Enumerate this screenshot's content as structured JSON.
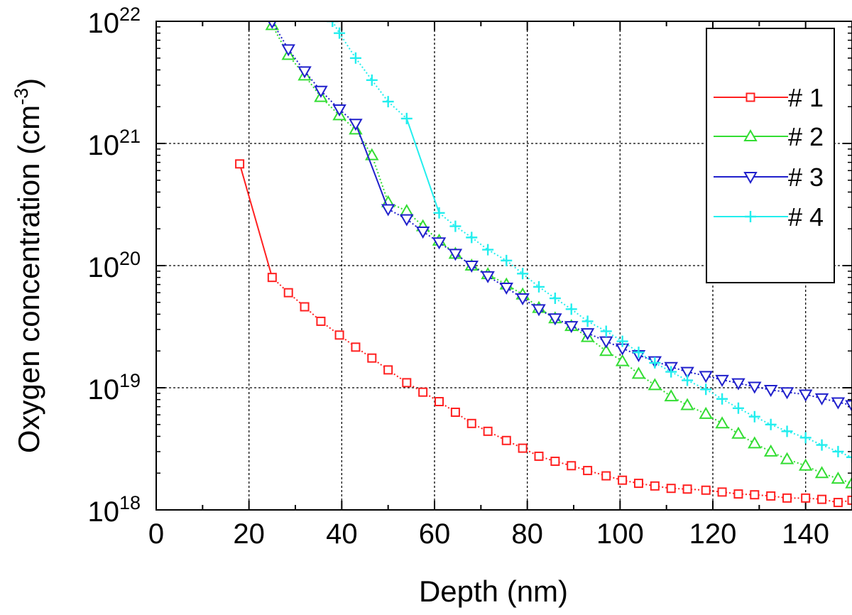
{
  "chart_data": {
    "type": "scatter",
    "title": "",
    "xlabel": "Depth (nm)",
    "ylabel": {
      "main": "Oxygen concentration (cm",
      "sup": "-3",
      "close": ")"
    },
    "xlim": [
      0,
      150
    ],
    "ylim": [
      1e+18,
      1e+22
    ],
    "yscale": "log",
    "grid": true,
    "legend_position": "top-right",
    "x_ticks": [
      "0",
      "20",
      "40",
      "60",
      "80",
      "100",
      "120",
      "140"
    ],
    "y_ticks": [
      {
        "base": "10",
        "exp": "18"
      },
      {
        "base": "10",
        "exp": "19"
      },
      {
        "base": "10",
        "exp": "20"
      },
      {
        "base": "10",
        "exp": "21"
      },
      {
        "base": "10",
        "exp": "22"
      }
    ],
    "series": [
      {
        "name": "# 1",
        "color": "#ff2020",
        "marker": "square",
        "x": [
          18,
          25,
          28.5,
          32,
          35.5,
          39.5,
          43,
          46.5,
          50,
          54,
          57.5,
          61,
          64.5,
          68,
          71.5,
          75.5,
          79,
          82.5,
          86,
          89.5,
          93,
          97,
          100.5,
          104,
          107.5,
          111,
          114.5,
          118.5,
          122,
          125.5,
          129,
          132.5,
          136,
          140,
          143.5,
          147,
          150
        ],
        "y": [
          6.8e+20,
          8e+19,
          6e+19,
          4.6e+19,
          3.5e+19,
          2.7e+19,
          2.15e+19,
          1.75e+19,
          1.4e+19,
          1.1e+19,
          9.2e+18,
          7.7e+18,
          6.3e+18,
          5.1e+18,
          4.4e+18,
          3.7e+18,
          3.2e+18,
          2.75e+18,
          2.5e+18,
          2.3e+18,
          2.1e+18,
          1.9e+18,
          1.75e+18,
          1.65e+18,
          1.57e+18,
          1.5e+18,
          1.48e+18,
          1.45e+18,
          1.4e+18,
          1.35e+18,
          1.33e+18,
          1.3e+18,
          1.25e+18,
          1.25e+18,
          1.22e+18,
          1.15e+18,
          1.2e+18
        ]
      },
      {
        "name": "# 2",
        "color": "#33dd33",
        "marker": "triangle-up",
        "x": [
          25,
          28.5,
          32,
          35.5,
          39.5,
          43,
          46.5,
          50,
          54,
          57.5,
          61,
          64.5,
          68,
          71.5,
          75.5,
          79,
          82.5,
          86,
          89.5,
          93,
          97,
          100.5,
          104,
          107.5,
          111,
          114.5,
          118.5,
          122,
          125.5,
          129,
          132.5,
          136,
          140,
          143.5,
          147,
          150
        ],
        "y": [
          9.3e+21,
          5.3e+21,
          3.6e+21,
          2.4e+21,
          1.7e+21,
          1.3e+21,
          8e+20,
          3.3e+20,
          2.8e+20,
          2.1e+20,
          1.6e+20,
          1.25e+20,
          1e+20,
          8.5e+19,
          7e+19,
          5.8e+19,
          4.5e+19,
          3.7e+19,
          3.2e+19,
          2.6e+19,
          2e+19,
          1.65e+19,
          1.3e+19,
          1.05e+19,
          8.5e+18,
          7.2e+18,
          6.1e+18,
          5.1e+18,
          4.2e+18,
          3.5e+18,
          3e+18,
          2.6e+18,
          2.3e+18,
          2e+18,
          1.8e+18,
          1.65e+18
        ]
      },
      {
        "name": "# 3",
        "color": "#2020cc",
        "marker": "triangle-down",
        "x": [
          25,
          28.5,
          32,
          35.5,
          39.5,
          43,
          50,
          54,
          57.5,
          61,
          64.5,
          68,
          71.5,
          75.5,
          79,
          82.5,
          86,
          89.5,
          93,
          97,
          100.5,
          104,
          107.5,
          111,
          114.5,
          118.5,
          122,
          125.5,
          129,
          132.5,
          136,
          140,
          143.5,
          147,
          150
        ],
        "y": [
          9.9e+21,
          5.9e+21,
          3.9e+21,
          2.7e+21,
          1.9e+21,
          1.45e+21,
          2.9e+20,
          2.4e+20,
          1.9e+20,
          1.55e+20,
          1.25e+20,
          1e+20,
          8.2e+19,
          6.6e+19,
          5.4e+19,
          4.4e+19,
          3.7e+19,
          3.2e+19,
          2.8e+19,
          2.4e+19,
          2.1e+19,
          1.85e+19,
          1.65e+19,
          1.48e+19,
          1.35e+19,
          1.25e+19,
          1.16e+19,
          1.09e+19,
          1.02e+19,
          9.6e+18,
          9.2e+18,
          8.8e+18,
          8.2e+18,
          7.6e+18,
          7.2e+18
        ]
      },
      {
        "name": "# 4",
        "color": "#22eeee",
        "marker": "plus",
        "x": [
          38,
          39.5,
          43,
          46.5,
          50,
          54,
          61,
          64.5,
          68,
          71.5,
          75.5,
          79,
          82.5,
          86,
          89.5,
          93,
          97,
          100.5,
          104,
          107.5,
          111,
          114.5,
          118.5,
          122,
          125.5,
          129,
          132.5,
          136,
          140,
          143.5,
          147,
          150
        ],
        "y": [
          1e+22,
          8e+21,
          5e+21,
          3.3e+21,
          2.2e+21,
          1.6e+21,
          2.7e+20,
          2.1e+20,
          1.7e+20,
          1.35e+20,
          1.1e+20,
          8.6e+19,
          6.7e+19,
          5.4e+19,
          4.4e+19,
          3.5e+19,
          2.9e+19,
          2.4e+19,
          1.95e+19,
          1.6e+19,
          1.35e+19,
          1.15e+19,
          9.7e+18,
          8.1e+18,
          6.8e+18,
          5.8e+18,
          5e+18,
          4.4e+18,
          3.9e+18,
          3.4e+18,
          3e+18,
          2.7e+18
        ]
      }
    ]
  }
}
